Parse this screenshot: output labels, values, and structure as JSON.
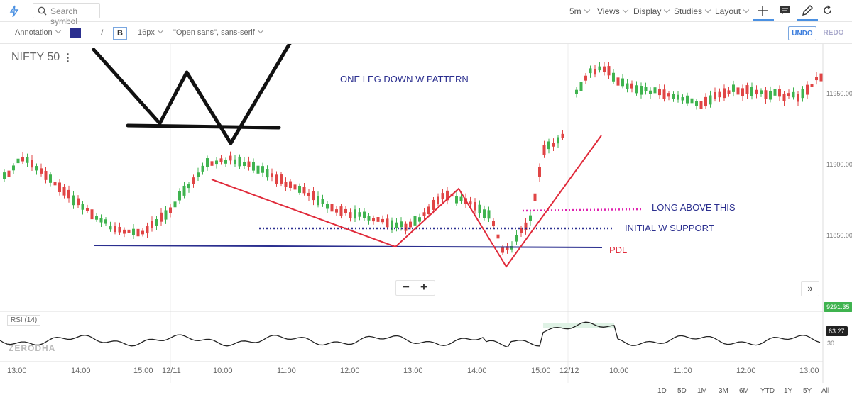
{
  "toolbar": {
    "search_placeholder": "Search symbol",
    "interval": "5m",
    "menus": [
      "Views",
      "Display",
      "Studies",
      "Layout"
    ]
  },
  "annotation_bar": {
    "mode": "Annotation",
    "line_glyph": "/",
    "bold": "B",
    "font_size": "16px",
    "font_family": "\"Open sans\", sans-serif",
    "color": "#2b2f8f",
    "undo": "UNDO",
    "redo": "REDO"
  },
  "chart": {
    "symbol": "NIFTY 50",
    "annotations": {
      "title": "ONE LEG DOWN W PATTERN",
      "long": "LONG ABOVE THIS",
      "support": "INITIAL W SUPPORT",
      "pdl": "PDL"
    },
    "price_ticks": [
      "11950.00",
      "11900.00",
      "11850.00"
    ],
    "time_labels": [
      "13:00",
      "14:00",
      "15:00",
      "12/11",
      "10:00",
      "11:00",
      "12:00",
      "13:00",
      "14:00",
      "15:00",
      "12/12",
      "10:00",
      "11:00",
      "12:00",
      "13:00"
    ],
    "rsi_label": "RSI (14)",
    "rsi_ticks": [
      "30"
    ],
    "rsi_value": "63.27",
    "volume_badge": "9291.35",
    "watermark": "ZERODHA",
    "ranges": [
      "1D",
      "5D",
      "1M",
      "3M",
      "6M",
      "YTD",
      "1Y",
      "5Y",
      "All"
    ]
  },
  "colors": {
    "up": "#3fb34f",
    "down": "#e04545",
    "accent": "#4a90e2",
    "annotation": "#2b2f8f",
    "pink": "#e020b0"
  }
}
